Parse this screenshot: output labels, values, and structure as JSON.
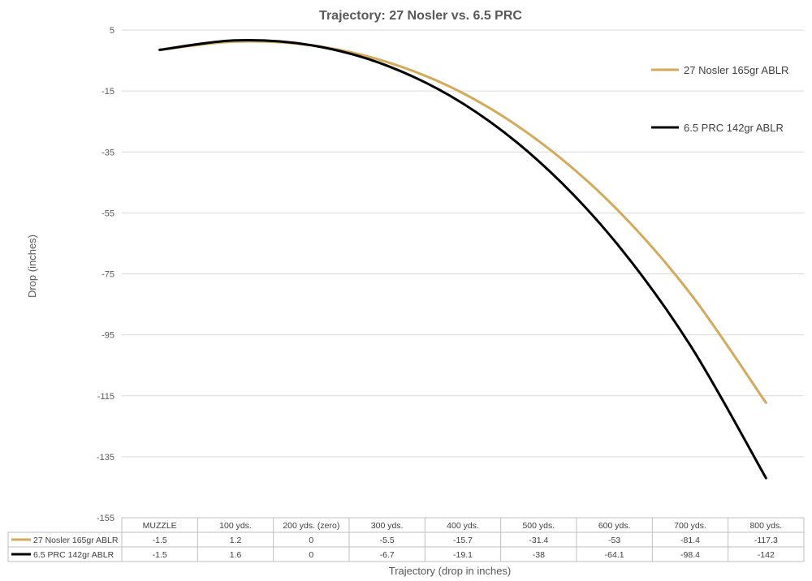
{
  "chart_data": {
    "type": "line",
    "title": "Trajectory: 27 Nosler vs. 6.5 PRC",
    "ylabel": "Drop (inches)",
    "xlabel": "Trajectory (drop in inches)",
    "ylim": [
      -155,
      5
    ],
    "yticks": [
      5,
      -15,
      -35,
      -55,
      -75,
      -95,
      -115,
      -135,
      -155
    ],
    "categories": [
      "MUZZLE",
      "100 yds.",
      "200 yds. (zero)",
      "300 yds.",
      "400 yds.",
      "500 yds.",
      "600 yds.",
      "700 yds.",
      "800 yds."
    ],
    "series": [
      {
        "name": "27 Nosler 165gr ABLR",
        "color": "#d4a95a",
        "values": [
          -1.5,
          1.2,
          0,
          -5.5,
          -15.7,
          -31.4,
          -53,
          -81.4,
          -117.3
        ]
      },
      {
        "name": "6.5 PRC 142gr ABLR",
        "color": "#000000",
        "values": [
          -1.5,
          1.6,
          0,
          -6.7,
          -19.1,
          -38,
          -64.1,
          -98.4,
          -142
        ]
      }
    ],
    "grid": true,
    "legend": "right",
    "data_table": true
  }
}
